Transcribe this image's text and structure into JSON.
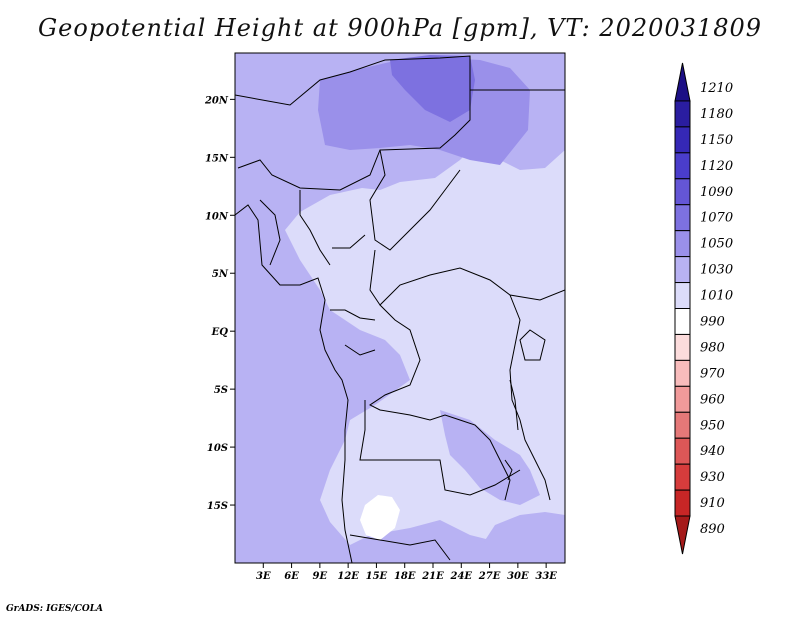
{
  "title": "Geopotential Height at 900hPa [gpm], VT: 2020031809",
  "credit": "GrADS: IGES/COLA",
  "map": {
    "lon_range": [
      0,
      35
    ],
    "lat_range": [
      -20,
      24
    ],
    "x_ticks": [
      {
        "value": 3,
        "label": "3E"
      },
      {
        "value": 6,
        "label": "6E"
      },
      {
        "value": 9,
        "label": "9E"
      },
      {
        "value": 12,
        "label": "12E"
      },
      {
        "value": 15,
        "label": "15E"
      },
      {
        "value": 18,
        "label": "18E"
      },
      {
        "value": 21,
        "label": "21E"
      },
      {
        "value": 24,
        "label": "24E"
      },
      {
        "value": 27,
        "label": "27E"
      },
      {
        "value": 30,
        "label": "30E"
      },
      {
        "value": 33,
        "label": "33E"
      }
    ],
    "y_ticks": [
      {
        "value": 20,
        "label": "20N"
      },
      {
        "value": 15,
        "label": "15N"
      },
      {
        "value": 10,
        "label": "10N"
      },
      {
        "value": 5,
        "label": "5N"
      },
      {
        "value": 0,
        "label": "EQ"
      },
      {
        "value": -5,
        "label": "5S"
      },
      {
        "value": -10,
        "label": "10S"
      },
      {
        "value": -15,
        "label": "15S"
      }
    ]
  },
  "colorbar": {
    "levels": [
      "1210",
      "1180",
      "1150",
      "1120",
      "1090",
      "1070",
      "1050",
      "1030",
      "1010",
      "990",
      "980",
      "970",
      "960",
      "950",
      "940",
      "930",
      "910",
      "890"
    ],
    "colors": [
      "#1c0f85",
      "#2a1da0",
      "#3528b6",
      "#4a3dcb",
      "#6456d6",
      "#7d71e0",
      "#9a90ea",
      "#b8b2f3",
      "#dcdcfa",
      "#ffffff",
      "#fcdcdc",
      "#f8bcbc",
      "#f19a9a",
      "#e57878",
      "#dd5757",
      "#d63c3c",
      "#c72626",
      "#a51a1a"
    ]
  },
  "fill_colors": {
    "c1030_1050": "#b8b2f3",
    "c1050_1070": "#9a90ea",
    "c1070_1090": "#7d71e0",
    "c1010_1030": "#dcdcfa",
    "c990_1010": "#ffffff"
  }
}
